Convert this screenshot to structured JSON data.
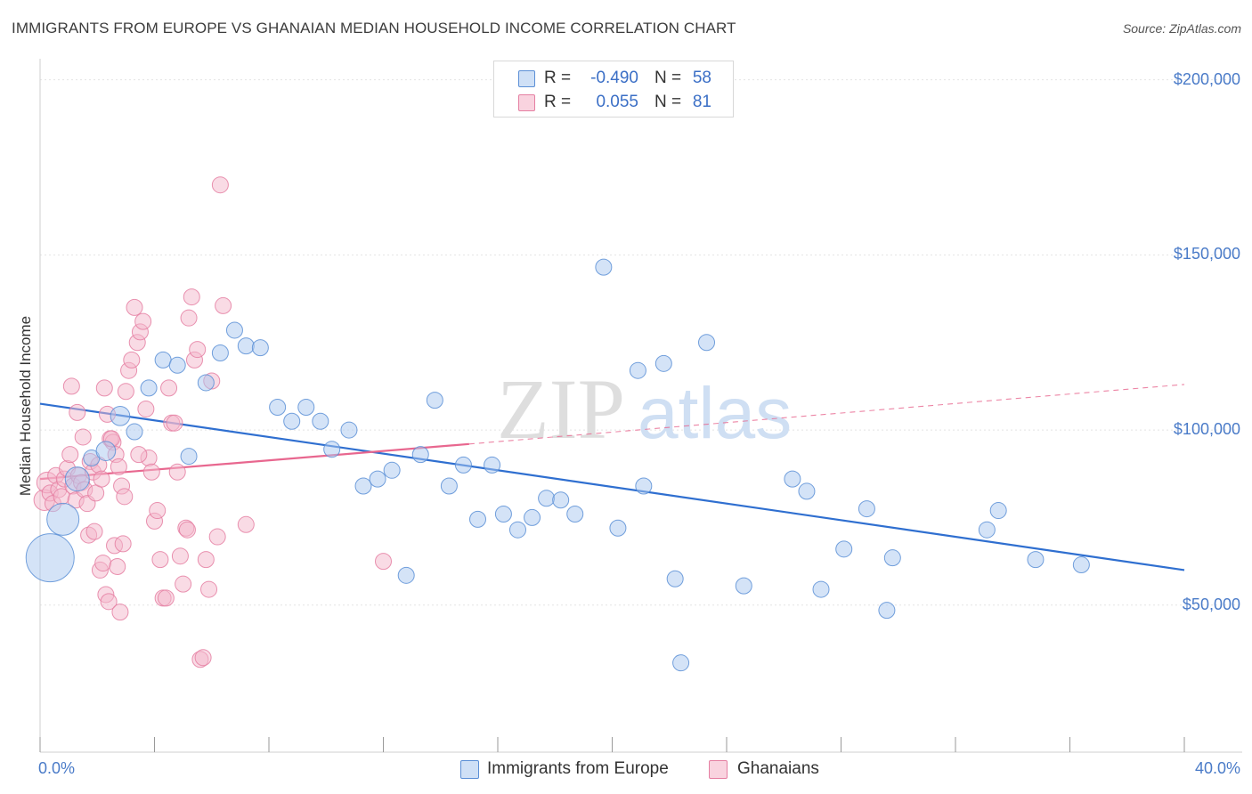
{
  "title": "IMMIGRANTS FROM EUROPE VS GHANAIAN MEDIAN HOUSEHOLD INCOME CORRELATION CHART",
  "source": "Source: ZipAtlas.com",
  "watermark": {
    "zip": "ZIP",
    "atlas": "atlas"
  },
  "colors": {
    "blue_fill": "#a9c8ef",
    "blue_stroke": "#5b8fd6",
    "blue_line": "#2f6fd0",
    "pink_fill": "#f4b8cc",
    "pink_stroke": "#e57fa2",
    "pink_line": "#e8678f",
    "axis_text": "#4a7bc8",
    "grid": "#e4e4e4"
  },
  "legend_top": [
    {
      "r_label": "R =",
      "r_value": "-0.490",
      "n_label": "N =",
      "n_value": "58",
      "color": "#a9c8ef"
    },
    {
      "r_label": "R =",
      "r_value": "0.055",
      "n_label": "N =",
      "n_value": "81",
      "color": "#f6c3d4"
    }
  ],
  "legend_bottom": [
    {
      "label": "Immigrants from Europe",
      "color": "#a9c8ef"
    },
    {
      "label": "Ghanaians",
      "color": "#f6c3d4"
    }
  ],
  "chart_data": {
    "type": "scatter",
    "title": "IMMIGRANTS FROM EUROPE VS GHANAIAN MEDIAN HOUSEHOLD INCOME CORRELATION CHART",
    "xlabel": "",
    "ylabel": "Median Household Income",
    "x_tick_labels": [
      "0.0%",
      "40.0%"
    ],
    "y_tick_labels": [
      "$50,000",
      "$100,000",
      "$150,000",
      "$200,000"
    ],
    "y_ticks": [
      50000,
      100000,
      150000,
      200000
    ],
    "xlim": [
      0,
      40
    ],
    "ylim": [
      8000,
      205000
    ],
    "grid": true,
    "legend_position": "top-center",
    "series": [
      {
        "name": "Immigrants from Europe",
        "r": -0.49,
        "n": 58,
        "trend": {
          "x": [
            0,
            40
          ],
          "y": [
            107500,
            60000
          ]
        },
        "points": [
          {
            "x": 0.35,
            "y": 63500,
            "s": 3
          },
          {
            "x": 0.8,
            "y": 74500,
            "s": 2
          },
          {
            "x": 1.3,
            "y": 86000,
            "s": 1.5
          },
          {
            "x": 1.8,
            "y": 92000,
            "s": 1
          },
          {
            "x": 2.3,
            "y": 94000,
            "s": 1.2
          },
          {
            "x": 2.8,
            "y": 104000,
            "s": 1.2
          },
          {
            "x": 3.3,
            "y": 99500,
            "s": 1
          },
          {
            "x": 3.8,
            "y": 112000,
            "s": 1
          },
          {
            "x": 4.3,
            "y": 120000,
            "s": 1
          },
          {
            "x": 4.8,
            "y": 118500,
            "s": 1
          },
          {
            "x": 5.2,
            "y": 92500,
            "s": 1
          },
          {
            "x": 5.8,
            "y": 113500,
            "s": 1
          },
          {
            "x": 6.3,
            "y": 122000,
            "s": 1
          },
          {
            "x": 6.8,
            "y": 128500,
            "s": 1
          },
          {
            "x": 7.2,
            "y": 124000,
            "s": 1
          },
          {
            "x": 7.7,
            "y": 123500,
            "s": 1
          },
          {
            "x": 8.3,
            "y": 106500,
            "s": 1
          },
          {
            "x": 8.8,
            "y": 102500,
            "s": 1
          },
          {
            "x": 9.3,
            "y": 106500,
            "s": 1
          },
          {
            "x": 9.8,
            "y": 102500,
            "s": 1
          },
          {
            "x": 10.2,
            "y": 94500,
            "s": 1
          },
          {
            "x": 10.8,
            "y": 100000,
            "s": 1
          },
          {
            "x": 11.3,
            "y": 84000,
            "s": 1
          },
          {
            "x": 11.8,
            "y": 86000,
            "s": 1
          },
          {
            "x": 12.3,
            "y": 88500,
            "s": 1
          },
          {
            "x": 12.8,
            "y": 58500,
            "s": 1
          },
          {
            "x": 13.3,
            "y": 93000,
            "s": 1
          },
          {
            "x": 13.8,
            "y": 108500,
            "s": 1
          },
          {
            "x": 14.3,
            "y": 84000,
            "s": 1
          },
          {
            "x": 14.8,
            "y": 90000,
            "s": 1
          },
          {
            "x": 15.3,
            "y": 74500,
            "s": 1
          },
          {
            "x": 15.8,
            "y": 90000,
            "s": 1
          },
          {
            "x": 16.2,
            "y": 76000,
            "s": 1
          },
          {
            "x": 16.7,
            "y": 71500,
            "s": 1
          },
          {
            "x": 17.2,
            "y": 75000,
            "s": 1
          },
          {
            "x": 17.7,
            "y": 80500,
            "s": 1
          },
          {
            "x": 18.2,
            "y": 80000,
            "s": 1
          },
          {
            "x": 18.7,
            "y": 76000,
            "s": 1
          },
          {
            "x": 19.7,
            "y": 146500,
            "s": 1
          },
          {
            "x": 20.2,
            "y": 72000,
            "s": 1
          },
          {
            "x": 20.9,
            "y": 117000,
            "s": 1
          },
          {
            "x": 21.1,
            "y": 84000,
            "s": 1
          },
          {
            "x": 21.8,
            "y": 119000,
            "s": 1
          },
          {
            "x": 22.2,
            "y": 57500,
            "s": 1
          },
          {
            "x": 22.4,
            "y": 33500,
            "s": 1
          },
          {
            "x": 23.3,
            "y": 125000,
            "s": 1
          },
          {
            "x": 24.6,
            "y": 55500,
            "s": 1
          },
          {
            "x": 26.3,
            "y": 86000,
            "s": 1
          },
          {
            "x": 26.8,
            "y": 82500,
            "s": 1
          },
          {
            "x": 27.3,
            "y": 54500,
            "s": 1
          },
          {
            "x": 28.1,
            "y": 66000,
            "s": 1
          },
          {
            "x": 28.9,
            "y": 77500,
            "s": 1
          },
          {
            "x": 29.6,
            "y": 48500,
            "s": 1
          },
          {
            "x": 29.8,
            "y": 63500,
            "s": 1
          },
          {
            "x": 33.1,
            "y": 71500,
            "s": 1
          },
          {
            "x": 33.5,
            "y": 77000,
            "s": 1
          },
          {
            "x": 34.8,
            "y": 63000,
            "s": 1
          },
          {
            "x": 36.4,
            "y": 61500,
            "s": 1
          }
        ]
      },
      {
        "name": "Ghanaians",
        "r": 0.055,
        "n": 81,
        "trend": {
          "x": [
            0,
            15
          ],
          "y": [
            86000,
            96000
          ]
        },
        "trend_extension": {
          "x": [
            15,
            40
          ],
          "y": [
            96000,
            113000
          ]
        },
        "points": [
          {
            "x": 0.15,
            "y": 80000,
            "s": 1.3
          },
          {
            "x": 0.25,
            "y": 85000,
            "s": 1.3
          },
          {
            "x": 0.35,
            "y": 82000,
            "s": 1
          },
          {
            "x": 0.45,
            "y": 79000,
            "s": 1
          },
          {
            "x": 0.55,
            "y": 87000,
            "s": 1
          },
          {
            "x": 0.65,
            "y": 83000,
            "s": 1
          },
          {
            "x": 0.75,
            "y": 81000,
            "s": 1
          },
          {
            "x": 0.85,
            "y": 86000,
            "s": 1
          },
          {
            "x": 0.95,
            "y": 89000,
            "s": 1
          },
          {
            "x": 1.05,
            "y": 93000,
            "s": 1
          },
          {
            "x": 1.15,
            "y": 84000,
            "s": 1
          },
          {
            "x": 1.25,
            "y": 80000,
            "s": 1
          },
          {
            "x": 1.35,
            "y": 87000,
            "s": 1
          },
          {
            "x": 1.45,
            "y": 85000,
            "s": 1
          },
          {
            "x": 1.55,
            "y": 83000,
            "s": 1
          },
          {
            "x": 1.65,
            "y": 79000,
            "s": 1
          },
          {
            "x": 1.75,
            "y": 91000,
            "s": 1
          },
          {
            "x": 1.85,
            "y": 88000,
            "s": 1
          },
          {
            "x": 1.95,
            "y": 82000,
            "s": 1
          },
          {
            "x": 2.05,
            "y": 90000,
            "s": 1
          },
          {
            "x": 2.15,
            "y": 86000,
            "s": 1
          },
          {
            "x": 2.25,
            "y": 112000,
            "s": 1
          },
          {
            "x": 2.35,
            "y": 104500,
            "s": 1
          },
          {
            "x": 2.45,
            "y": 97500,
            "s": 1
          },
          {
            "x": 2.55,
            "y": 96500,
            "s": 1
          },
          {
            "x": 2.65,
            "y": 93000,
            "s": 1
          },
          {
            "x": 2.75,
            "y": 89500,
            "s": 1
          },
          {
            "x": 2.85,
            "y": 84000,
            "s": 1
          },
          {
            "x": 2.95,
            "y": 81000,
            "s": 1
          },
          {
            "x": 1.1,
            "y": 112500,
            "s": 1
          },
          {
            "x": 1.3,
            "y": 105000,
            "s": 1
          },
          {
            "x": 1.5,
            "y": 98000,
            "s": 1
          },
          {
            "x": 1.7,
            "y": 70000,
            "s": 1
          },
          {
            "x": 1.9,
            "y": 71000,
            "s": 1
          },
          {
            "x": 2.1,
            "y": 60000,
            "s": 1
          },
          {
            "x": 2.2,
            "y": 62000,
            "s": 1
          },
          {
            "x": 2.3,
            "y": 53000,
            "s": 1
          },
          {
            "x": 2.4,
            "y": 51000,
            "s": 1
          },
          {
            "x": 2.6,
            "y": 67000,
            "s": 1
          },
          {
            "x": 2.7,
            "y": 61000,
            "s": 1
          },
          {
            "x": 2.8,
            "y": 48000,
            "s": 1
          },
          {
            "x": 2.9,
            "y": 67500,
            "s": 1
          },
          {
            "x": 3.0,
            "y": 111000,
            "s": 1
          },
          {
            "x": 3.1,
            "y": 117000,
            "s": 1
          },
          {
            "x": 3.2,
            "y": 120000,
            "s": 1
          },
          {
            "x": 3.3,
            "y": 135000,
            "s": 1
          },
          {
            "x": 3.4,
            "y": 125000,
            "s": 1
          },
          {
            "x": 3.5,
            "y": 128000,
            "s": 1
          },
          {
            "x": 3.6,
            "y": 131000,
            "s": 1
          },
          {
            "x": 3.7,
            "y": 106000,
            "s": 1
          },
          {
            "x": 3.8,
            "y": 92000,
            "s": 1
          },
          {
            "x": 3.9,
            "y": 88000,
            "s": 1
          },
          {
            "x": 4.0,
            "y": 74000,
            "s": 1
          },
          {
            "x": 4.1,
            "y": 77000,
            "s": 1
          },
          {
            "x": 4.2,
            "y": 63000,
            "s": 1
          },
          {
            "x": 4.3,
            "y": 52000,
            "s": 1
          },
          {
            "x": 4.4,
            "y": 52000,
            "s": 1
          },
          {
            "x": 4.5,
            "y": 112000,
            "s": 1
          },
          {
            "x": 4.6,
            "y": 102000,
            "s": 1
          },
          {
            "x": 4.7,
            "y": 102000,
            "s": 1
          },
          {
            "x": 4.8,
            "y": 88000,
            "s": 1
          },
          {
            "x": 4.9,
            "y": 64000,
            "s": 1
          },
          {
            "x": 5.0,
            "y": 56000,
            "s": 1
          },
          {
            "x": 5.1,
            "y": 72000,
            "s": 1
          },
          {
            "x": 5.2,
            "y": 132000,
            "s": 1
          },
          {
            "x": 5.3,
            "y": 138000,
            "s": 1
          },
          {
            "x": 5.4,
            "y": 120000,
            "s": 1
          },
          {
            "x": 5.5,
            "y": 123000,
            "s": 1
          },
          {
            "x": 5.6,
            "y": 34500,
            "s": 1
          },
          {
            "x": 5.7,
            "y": 35000,
            "s": 1
          },
          {
            "x": 5.8,
            "y": 63000,
            "s": 1
          },
          {
            "x": 5.9,
            "y": 54500,
            "s": 1
          },
          {
            "x": 6.0,
            "y": 114000,
            "s": 1
          },
          {
            "x": 6.2,
            "y": 69500,
            "s": 1
          },
          {
            "x": 6.3,
            "y": 170000,
            "s": 1
          },
          {
            "x": 6.4,
            "y": 135500,
            "s": 1
          },
          {
            "x": 7.2,
            "y": 73000,
            "s": 1
          },
          {
            "x": 12.0,
            "y": 62500,
            "s": 1
          },
          {
            "x": 3.45,
            "y": 93000,
            "s": 1
          },
          {
            "x": 5.15,
            "y": 71500,
            "s": 1
          },
          {
            "x": 2.5,
            "y": 97500,
            "s": 1
          }
        ]
      }
    ]
  }
}
